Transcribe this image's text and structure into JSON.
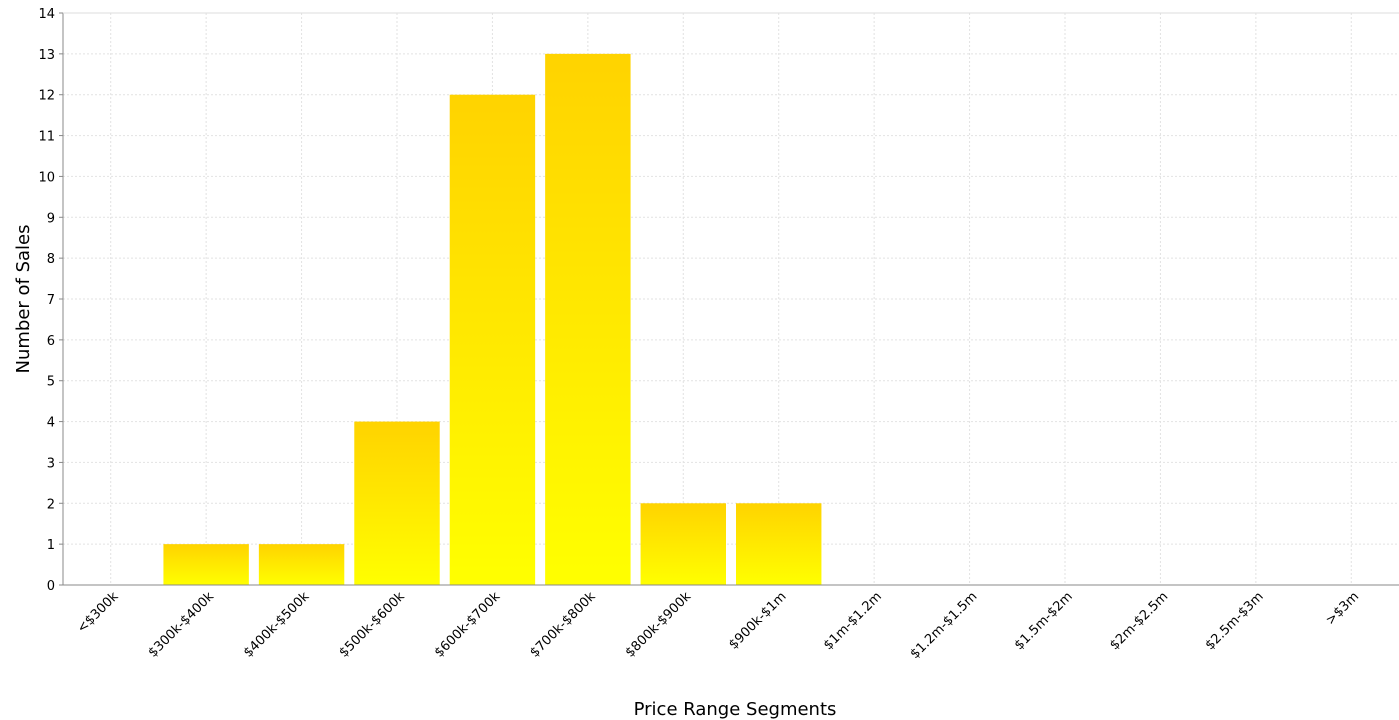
{
  "chart_data": {
    "type": "bar",
    "title": "",
    "xlabel": "Price Range Segments",
    "ylabel": "Number of Sales",
    "categories": [
      "<$300k",
      "$300k-$400k",
      "$400k-$500k",
      "$500k-$600k",
      "$600k-$700k",
      "$700k-$800k",
      "$800k-$900k",
      "$900k-$1m",
      "$1m-$1.2m",
      "$1.2m-$1.5m",
      "$1.5m-$2m",
      "$2m-$2.5m",
      "$2.5m-$3m",
      ">$3m"
    ],
    "values": [
      0,
      1,
      1,
      4,
      12,
      13,
      2,
      2,
      0,
      0,
      0,
      0,
      0,
      0
    ],
    "ylim": [
      0,
      14
    ],
    "yticks": [
      0,
      1,
      2,
      3,
      4,
      5,
      6,
      7,
      8,
      9,
      10,
      11,
      12,
      13,
      14
    ],
    "grid": true,
    "legend": "none",
    "colors": {
      "bar_top": "#FFD300",
      "bar_bottom": "#FFFF00"
    }
  }
}
